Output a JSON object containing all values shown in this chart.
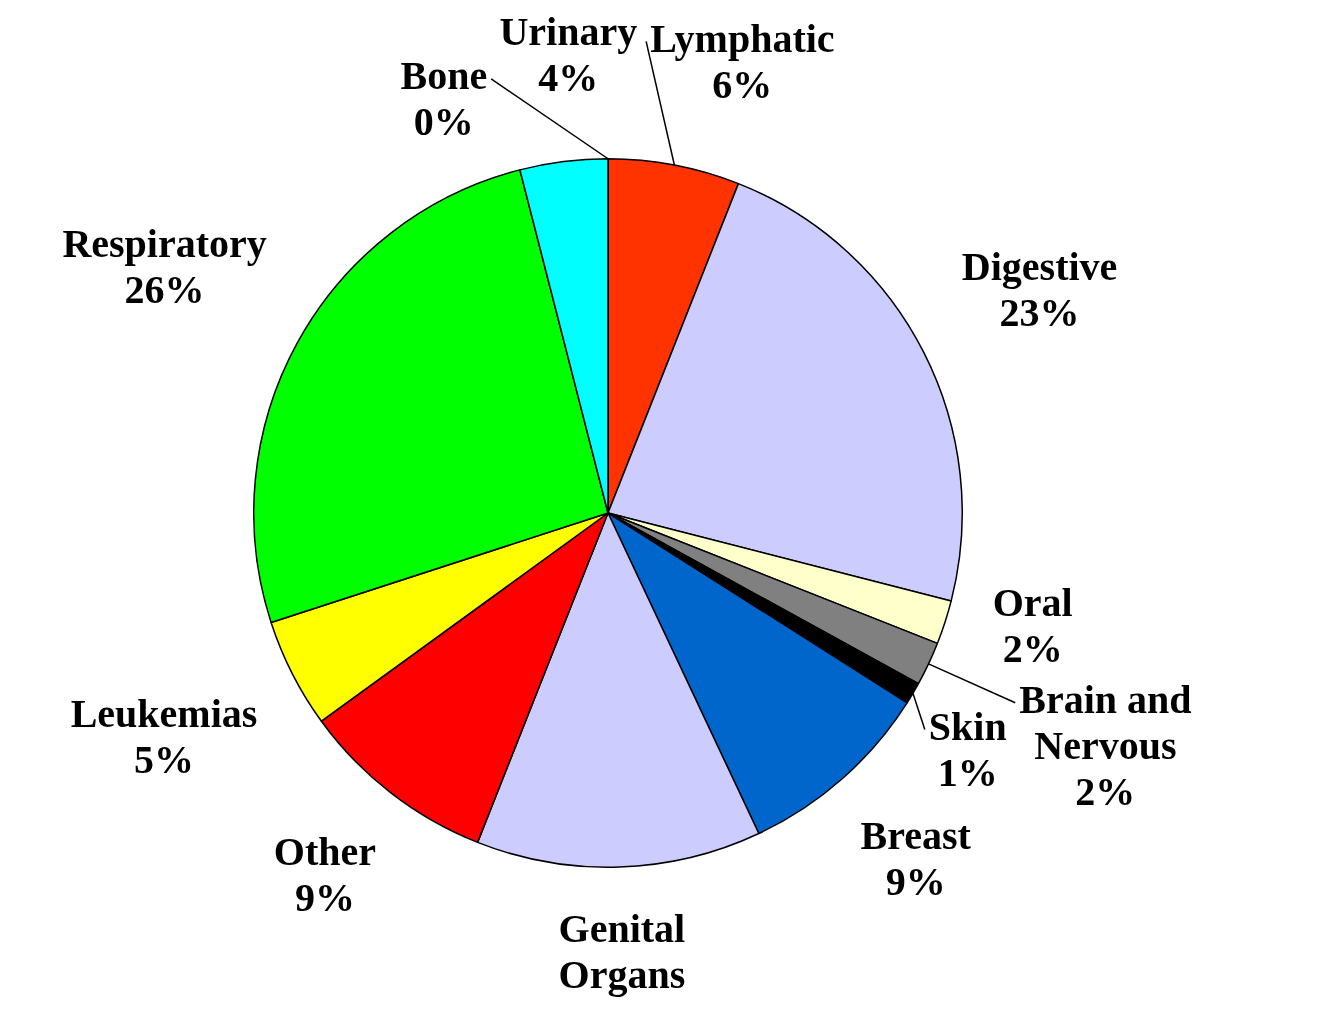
{
  "chart_data": {
    "type": "pie",
    "categories": [
      "Bone",
      "Lymphatic",
      "Digestive",
      "Oral",
      "Brain and Nervous",
      "Skin",
      "Breast",
      "Genital Organs",
      "Other",
      "Leukemias",
      "Respiratory",
      "Urinary"
    ],
    "values": [
      0,
      6,
      23,
      2,
      2,
      1,
      9,
      13,
      9,
      5,
      26,
      4
    ],
    "value_labels": [
      "0%",
      "6%",
      "23%",
      "2%",
      "2%",
      "1%",
      "9%",
      null,
      "9%",
      "5%",
      "26%",
      "4%"
    ],
    "colors": [
      "#808080",
      "#ff3300",
      "#ccccff",
      "#ffffcc",
      "#808080",
      "#000000",
      "#0066cc",
      "#ccccff",
      "#ff0000",
      "#ffff00",
      "#00ff00",
      "#00ffff"
    ],
    "legend": false
  }
}
